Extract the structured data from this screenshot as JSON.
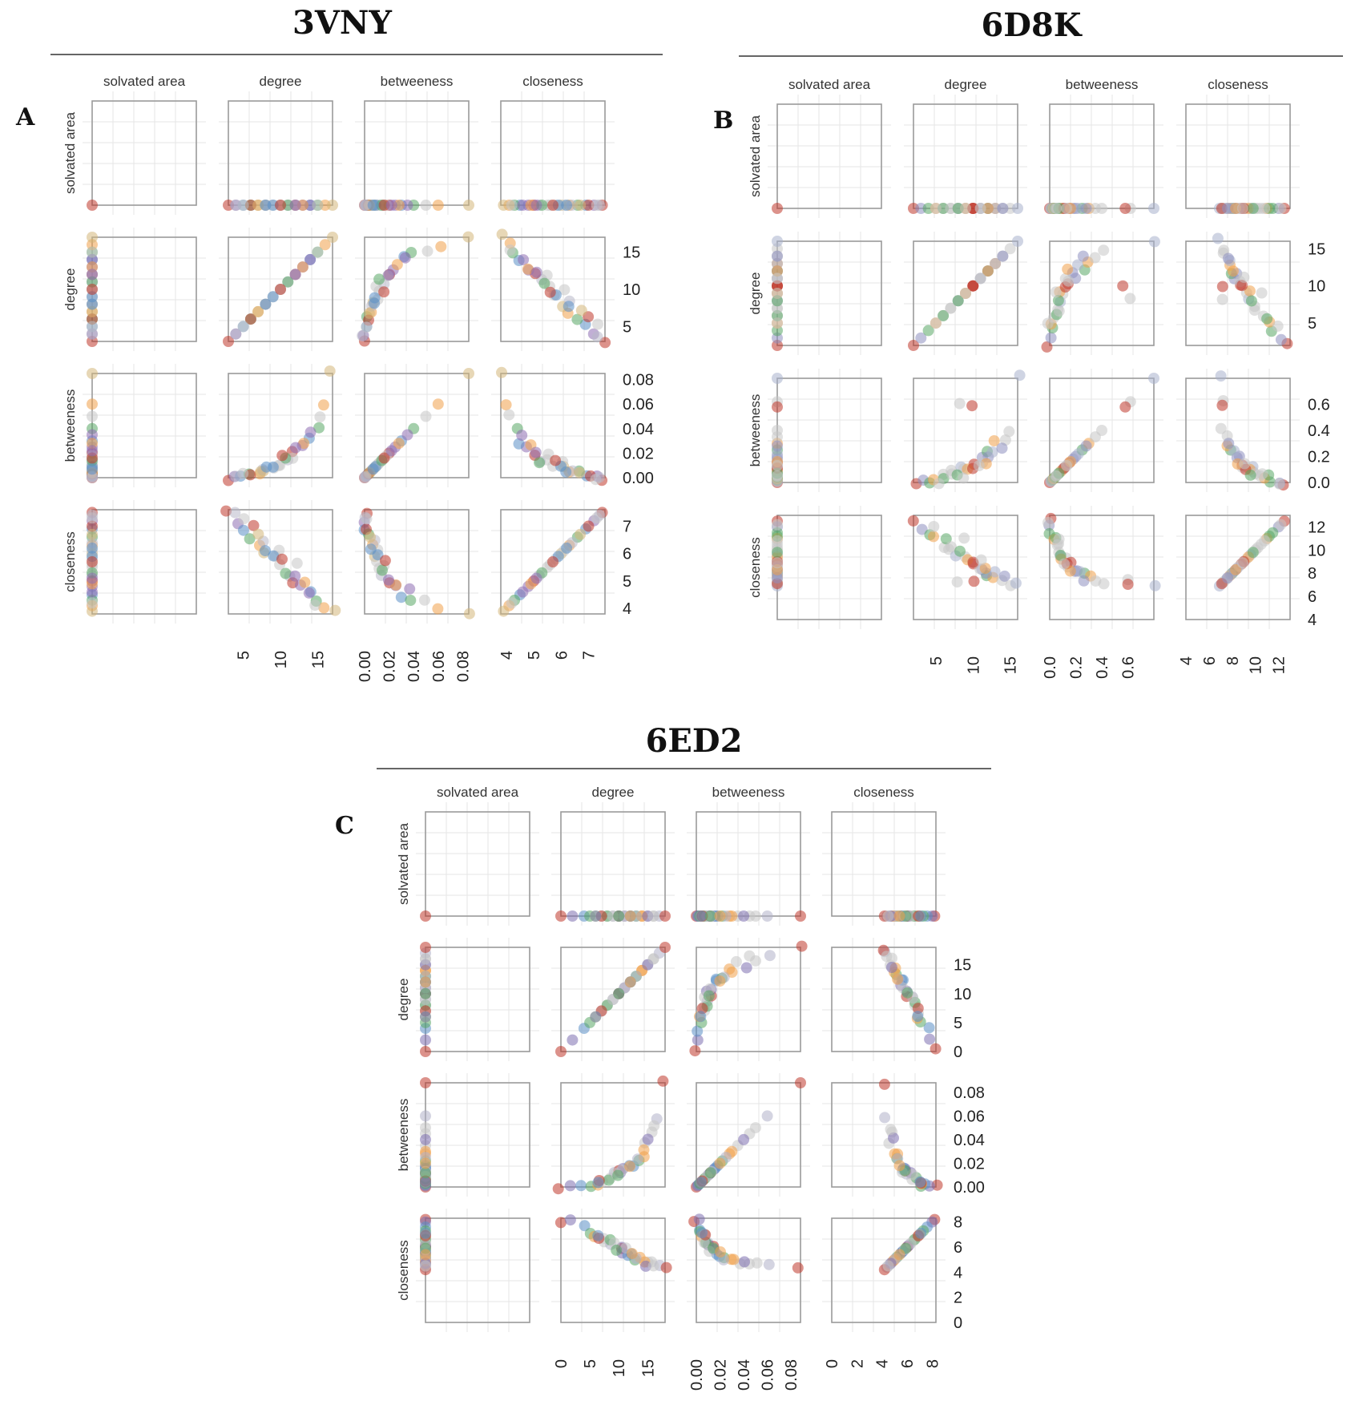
{
  "chart_data": [
    {
      "type": "scatter",
      "panel_letter": "A",
      "title": "3VNY",
      "variables": [
        "solvated area",
        "degree",
        "betweeness",
        "closeness"
      ],
      "axis_ranges": {
        "solvated area": [
          0,
          1
        ],
        "degree": [
          3,
          17
        ],
        "betweeness": [
          0,
          0.085
        ],
        "closeness": [
          3.8,
          7.6
        ]
      },
      "right_ticks": {
        "degree": [
          "15",
          "10",
          "5"
        ],
        "betweeness": [
          "0.08",
          "0.06",
          "0.04",
          "0.02",
          "0.00"
        ],
        "closeness": [
          "7",
          "6",
          "5",
          "4"
        ]
      },
      "bottom_ticks": {
        "degree": [
          "5",
          "10",
          "15"
        ],
        "betweeness": [
          "0.00",
          "0.02",
          "0.04",
          "0.06",
          "0.08"
        ],
        "closeness": [
          "4",
          "5",
          "6",
          "7"
        ]
      },
      "diagonal_ranges": {
        "degree": [
          3,
          17
        ],
        "betweeness": [
          0,
          0.085
        ],
        "closeness": [
          3.8,
          7.6
        ]
      },
      "points": {
        "degree": [
          3,
          4,
          5,
          6,
          7,
          8,
          9,
          10,
          11,
          12,
          13,
          14,
          15,
          16,
          17,
          12,
          10,
          8,
          6,
          14,
          9,
          11,
          13,
          7,
          5,
          15,
          4,
          10,
          12,
          8
        ],
        "betweeness": [
          0.0,
          0.001,
          0.002,
          0.004,
          0.005,
          0.008,
          0.01,
          0.012,
          0.015,
          0.02,
          0.025,
          0.03,
          0.04,
          0.06,
          0.085,
          0.018,
          0.011,
          0.006,
          0.003,
          0.035,
          0.009,
          0.014,
          0.028,
          0.004,
          0.001,
          0.05,
          0.0,
          0.016,
          0.022,
          0.007
        ],
        "closeness": [
          7.5,
          7.2,
          6.9,
          6.6,
          6.3,
          6.0,
          5.8,
          5.5,
          5.2,
          5.0,
          4.8,
          4.5,
          4.3,
          4.1,
          3.9,
          5.6,
          6.1,
          6.4,
          7.0,
          4.6,
          5.9,
          5.3,
          4.9,
          6.7,
          7.3,
          4.2,
          7.4,
          5.7,
          5.1,
          6.2
        ]
      },
      "colors": [
        "#c0392b",
        "#8e6db3",
        "#5b8fc7",
        "#5aa866",
        "#f0a04b",
        "#d4b67a",
        "#c7c7c7",
        "#c7c7c7",
        "#b8b8c8"
      ],
      "grid": true
    },
    {
      "type": "scatter",
      "panel_letter": "B",
      "title": "6D8K",
      "variables": [
        "solvated area",
        "degree",
        "betweeness",
        "closeness"
      ],
      "axis_ranges": {
        "solvated area": [
          0,
          1
        ],
        "degree": [
          2,
          16
        ],
        "betweeness": [
          0,
          0.8
        ],
        "closeness": [
          4,
          13
        ]
      },
      "right_ticks": {
        "degree": [
          "15",
          "10",
          "5"
        ],
        "betweeness": [
          "0.6",
          "0.4",
          "0.2",
          "0.0"
        ],
        "closeness": [
          "12",
          "10",
          "8",
          "6",
          "4"
        ]
      },
      "bottom_ticks": {
        "degree": [
          "5",
          "10",
          "15"
        ],
        "betweeness": [
          "0.0",
          "0.2",
          "0.4",
          "0.6"
        ],
        "closeness": [
          "4",
          "6",
          "8",
          "10",
          "12"
        ]
      },
      "diagonal_ranges": {
        "degree": [
          2,
          16
        ],
        "betweeness": [
          0,
          0.8
        ],
        "closeness": [
          6.8,
          12.6
        ]
      },
      "points": {
        "degree": [
          2,
          3,
          4,
          5,
          6,
          7,
          8,
          9,
          10,
          11,
          12,
          13,
          14,
          15,
          16,
          8,
          10,
          12,
          6,
          9,
          11,
          7,
          13,
          5,
          10,
          14,
          8,
          12,
          9,
          11
        ],
        "betweeness": [
          0.0,
          0.01,
          0.02,
          0.03,
          0.05,
          0.08,
          0.1,
          0.12,
          0.15,
          0.2,
          0.25,
          0.3,
          0.35,
          0.4,
          0.8,
          0.62,
          0.58,
          0.18,
          0.04,
          0.09,
          0.14,
          0.06,
          0.22,
          0.01,
          0.11,
          0.28,
          0.07,
          0.16,
          0.05,
          0.13
        ],
        "closeness": [
          12.5,
          12.0,
          11.5,
          11.0,
          10.5,
          10.0,
          9.6,
          9.2,
          8.8,
          8.4,
          8.0,
          7.8,
          7.5,
          7.2,
          6.9,
          7.3,
          7.1,
          8.2,
          11.2,
          9.4,
          8.6,
          10.2,
          7.9,
          12.2,
          9.0,
          7.6,
          9.8,
          8.3,
          10.8,
          8.9
        ]
      },
      "colors": [
        "#c0392b",
        "#8e8fc0",
        "#5aa866",
        "#f0a04b",
        "#c7c7c7",
        "#c7c7c7",
        "#a8b0cc",
        "#c7c7c7"
      ],
      "grid": true
    },
    {
      "type": "scatter",
      "panel_letter": "C",
      "title": "6ED2",
      "variables": [
        "solvated area",
        "degree",
        "betweeness",
        "closeness"
      ],
      "axis_ranges": {
        "solvated area": [
          0,
          1
        ],
        "degree": [
          0,
          18
        ],
        "betweeness": [
          0,
          0.088
        ],
        "closeness": [
          0,
          8.3
        ]
      },
      "right_ticks": {
        "degree": [
          "15",
          "10",
          "5",
          "0"
        ],
        "betweeness": [
          "0.08",
          "0.06",
          "0.04",
          "0.02",
          "0.00"
        ],
        "closeness": [
          "8",
          "6",
          "4",
          "2",
          "0"
        ]
      },
      "bottom_ticks": {
        "degree": [
          "0",
          "5",
          "10",
          "15"
        ],
        "betweeness": [
          "0.00",
          "0.02",
          "0.04",
          "0.06",
          "0.08"
        ],
        "closeness": [
          "0",
          "2",
          "4",
          "6",
          "8"
        ]
      },
      "diagonal_ranges": {
        "degree": [
          0,
          18
        ],
        "betweeness": [
          0,
          0.088
        ],
        "closeness": [
          4.1,
          8.3
        ]
      },
      "points": {
        "degree": [
          0,
          2,
          4,
          5,
          6,
          7,
          8,
          9,
          10,
          11,
          12,
          13,
          14,
          15,
          16,
          17,
          18,
          10,
          12,
          8,
          14,
          9,
          11,
          13,
          7,
          15,
          6,
          10,
          12,
          16
        ],
        "betweeness": [
          0.0,
          0.001,
          0.002,
          0.003,
          0.004,
          0.006,
          0.008,
          0.01,
          0.012,
          0.015,
          0.018,
          0.022,
          0.028,
          0.035,
          0.045,
          0.06,
          0.088,
          0.011,
          0.016,
          0.007,
          0.03,
          0.009,
          0.013,
          0.025,
          0.005,
          0.04,
          0.004,
          0.012,
          0.02,
          0.05
        ],
        "closeness": [
          8.2,
          8.0,
          7.6,
          7.3,
          7.0,
          6.8,
          6.5,
          6.2,
          6.0,
          5.7,
          5.5,
          5.2,
          5.0,
          4.8,
          4.6,
          4.4,
          4.2,
          6.1,
          5.6,
          6.6,
          4.9,
          6.3,
          5.8,
          5.1,
          6.9,
          4.7,
          7.1,
          5.9,
          5.4,
          4.5
        ]
      },
      "colors": [
        "#c0392b",
        "#7d6fb0",
        "#5b8fc7",
        "#5aa866",
        "#f0a04b",
        "#c7c7c7",
        "#c7c7c7",
        "#b0b0c8"
      ],
      "grid": true
    }
  ]
}
